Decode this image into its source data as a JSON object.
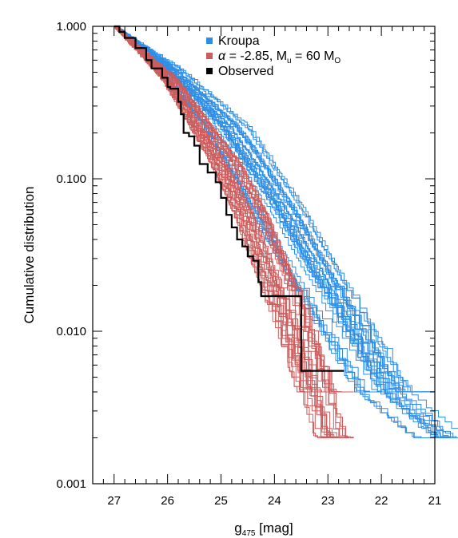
{
  "chart_data": {
    "type": "line",
    "step": true,
    "title": "",
    "xlabel": {
      "main": "g",
      "sub": "475",
      "unit": " [mag]"
    },
    "ylabel": "Cumulative distribution",
    "xlim": [
      27.4,
      21.0
    ],
    "ylim": [
      0.001,
      1.0
    ],
    "yscale": "log",
    "x_reversed": true,
    "x_ticks": [
      "27",
      "26",
      "25",
      "24",
      "23",
      "22",
      "21"
    ],
    "y_ticks": [
      "1.000",
      "0.100",
      "0.010",
      "0.001"
    ],
    "legend": {
      "position": "top-right",
      "entries": [
        {
          "id": "kroupa",
          "label": "Kroupa",
          "color": "#2e8ee6"
        },
        {
          "id": "model",
          "label_parts": [
            "α",
            " = -2.85, M",
            "u",
            " = 60 M",
            "O"
          ],
          "color": "#cd5c5c"
        },
        {
          "id": "observed",
          "label": "Observed",
          "color": "#000000"
        }
      ]
    },
    "series": [
      {
        "id": "kroupa",
        "count": 30,
        "color": "#2e8ee6",
        "anchors": [
          [
            27.0,
            1.0
          ],
          [
            26.0,
            0.52
          ],
          [
            25.0,
            0.22
          ],
          [
            24.0,
            0.066
          ],
          [
            23.0,
            0.016
          ],
          [
            22.0,
            0.004
          ],
          [
            21.0,
            0.002
          ]
        ],
        "spread_mag": 0.55,
        "floor_values": [
          0.002,
          0.004
        ]
      },
      {
        "id": "model",
        "count": 30,
        "color": "#cd5c5c",
        "anchors": [
          [
            27.0,
            1.0
          ],
          [
            26.0,
            0.45
          ],
          [
            25.0,
            0.13
          ],
          [
            24.5,
            0.06
          ],
          [
            24.0,
            0.022
          ],
          [
            23.5,
            0.007
          ],
          [
            23.0,
            0.002
          ],
          [
            22.5,
            0.002
          ]
        ],
        "spread_mag": 0.35,
        "floor_values": [
          0.002,
          0.004
        ]
      },
      {
        "id": "observed",
        "color": "#000000",
        "points": [
          [
            27.0,
            1.0
          ],
          [
            26.9,
            0.92
          ],
          [
            26.8,
            0.84
          ],
          [
            26.6,
            0.72
          ],
          [
            26.4,
            0.6
          ],
          [
            26.3,
            0.53
          ],
          [
            26.1,
            0.46
          ],
          [
            26.0,
            0.4
          ],
          [
            25.95,
            0.39
          ],
          [
            25.8,
            0.32
          ],
          [
            25.75,
            0.265
          ],
          [
            25.7,
            0.2
          ],
          [
            25.6,
            0.19
          ],
          [
            25.5,
            0.165
          ],
          [
            25.4,
            0.125
          ],
          [
            25.25,
            0.11
          ],
          [
            25.1,
            0.095
          ],
          [
            25.0,
            0.075
          ],
          [
            24.9,
            0.058
          ],
          [
            24.8,
            0.048
          ],
          [
            24.7,
            0.04
          ],
          [
            24.6,
            0.036
          ],
          [
            24.5,
            0.031
          ],
          [
            24.4,
            0.029
          ],
          [
            24.3,
            0.021
          ],
          [
            24.25,
            0.017
          ],
          [
            23.5,
            0.017
          ],
          [
            23.5,
            0.0055
          ],
          [
            22.7,
            0.0055
          ]
        ]
      }
    ],
    "grid": false
  }
}
